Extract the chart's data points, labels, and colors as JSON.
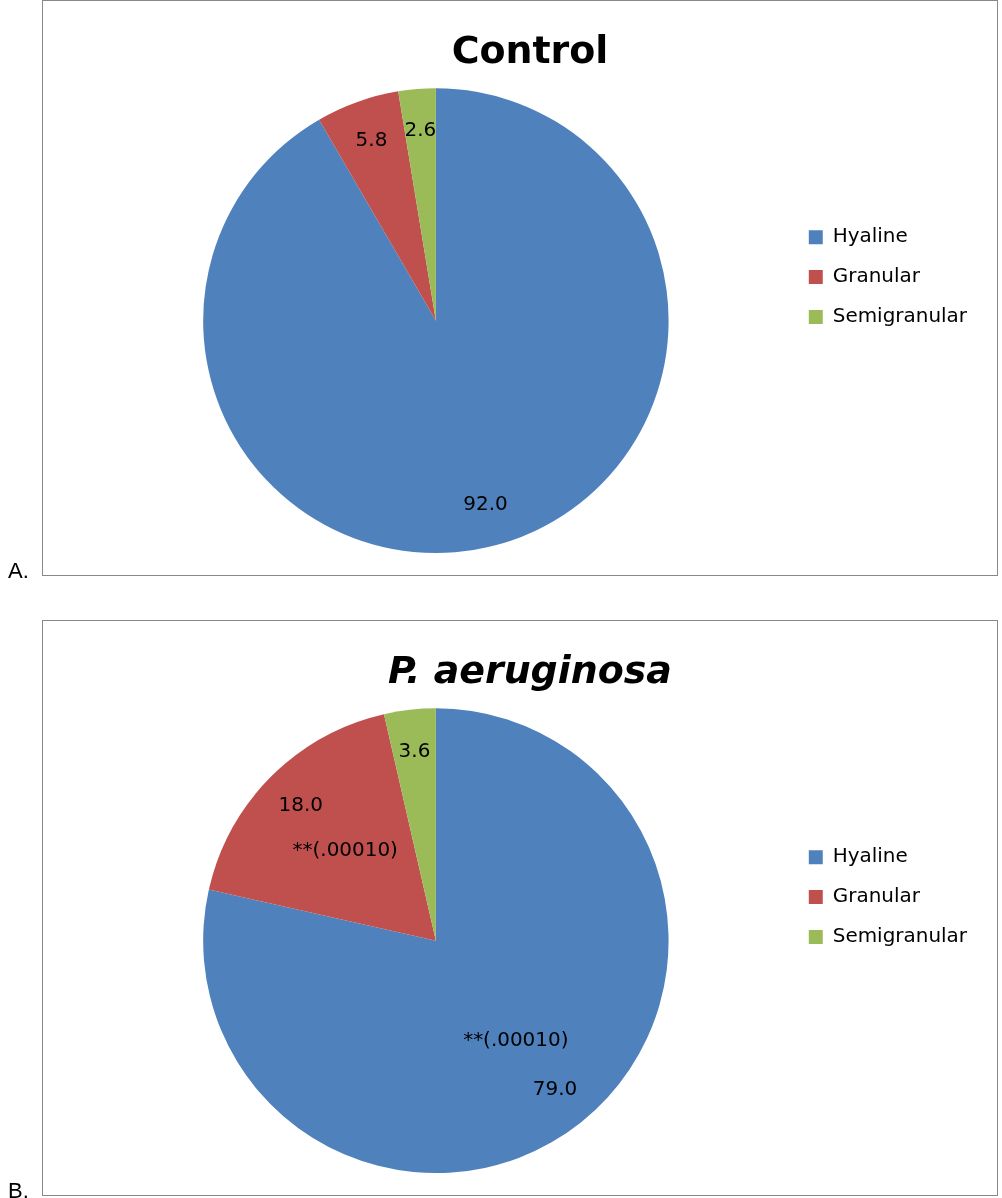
{
  "chart_data": [
    {
      "type": "pie",
      "title": "Control",
      "categories": [
        "Hyaline",
        "Granular",
        "Semigranular"
      ],
      "values": [
        92.0,
        5.8,
        2.6
      ],
      "value_labels": [
        "92.0",
        "5.8",
        "2.6"
      ],
      "colors": [
        "#4f81bd",
        "#c0504d",
        "#9bbb59"
      ],
      "legend": "right",
      "annotations": [
        "A."
      ]
    },
    {
      "type": "pie",
      "title": "P. aeruginosa",
      "categories": [
        "Hyaline",
        "Granular",
        "Semigranular"
      ],
      "values": [
        79.0,
        18.0,
        3.6
      ],
      "value_labels": [
        "79.0",
        "18.0",
        "3.6"
      ],
      "colors": [
        "#4f81bd",
        "#c0504d",
        "#9bbb59"
      ],
      "legend": "right",
      "annotations": [
        "B.",
        {
          "text": "**(.00010)",
          "x": "Granular"
        },
        {
          "text": "**(.00010)",
          "x": "Hyaline"
        }
      ]
    }
  ]
}
